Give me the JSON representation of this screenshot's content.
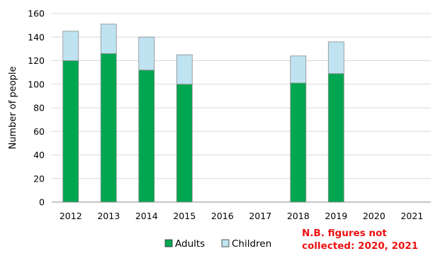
{
  "chart_data": {
    "type": "bar",
    "stacked": true,
    "categories": [
      "2012",
      "2013",
      "2014",
      "2015",
      "2016",
      "2017",
      "2018",
      "2019",
      "2020",
      "2021"
    ],
    "series": [
      {
        "name": "Adults",
        "values": [
          120,
          126,
          112,
          100,
          null,
          null,
          101,
          109,
          null,
          null
        ],
        "color": "#00a650"
      },
      {
        "name": "Children",
        "values": [
          25,
          25,
          28,
          25,
          null,
          null,
          23,
          27,
          null,
          null
        ],
        "color": "#bfe3f0"
      }
    ],
    "ylabel": "Number of people",
    "xlabel": "",
    "ylim": [
      0,
      160
    ],
    "yticks": [
      0,
      20,
      40,
      60,
      80,
      100,
      120,
      140,
      160
    ],
    "grid": true,
    "legend_position": "bottom",
    "note": [
      "N.B. figures not",
      "collected: 2020, 2021"
    ]
  }
}
